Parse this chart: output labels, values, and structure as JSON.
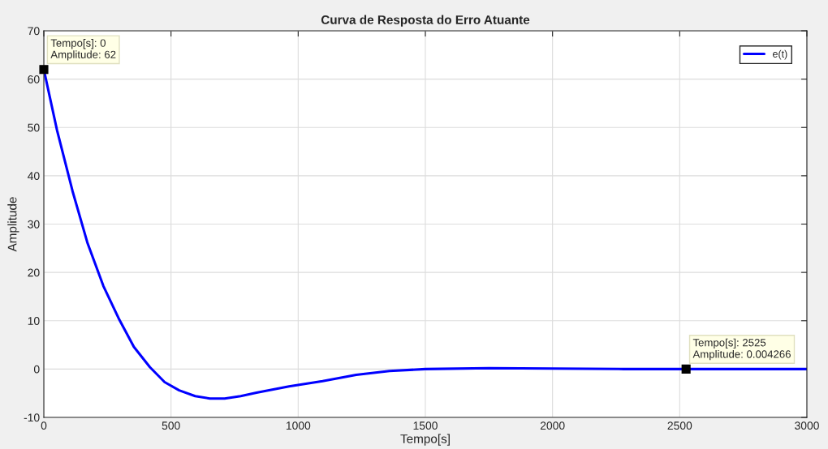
{
  "chart_data": {
    "type": "line",
    "title": "Curva de Resposta do Erro Atuante",
    "xlabel": "Tempo[s]",
    "ylabel": "Amplitude",
    "xlim": [
      0,
      3000
    ],
    "ylim": [
      -10,
      70
    ],
    "xticks": [
      0,
      500,
      1000,
      1500,
      2000,
      2500,
      3000
    ],
    "yticks": [
      -10,
      0,
      10,
      20,
      30,
      40,
      50,
      60,
      70
    ],
    "grid": true,
    "legend": "top right",
    "marker": "none",
    "line_style": "solid",
    "series": [
      {
        "name": "e(t)",
        "color": "#0000ff",
        "x": [
          0,
          52,
          113,
          171,
          234,
          297,
          354,
          417,
          475,
          532,
          595,
          653,
          711,
          774,
          836,
          964,
          1096,
          1228,
          1359,
          1500,
          1750,
          2000,
          2280,
          2525,
          3000
        ],
        "values": [
          62,
          49.4,
          36.8,
          26.2,
          17.2,
          10.2,
          4.6,
          0.4,
          -2.7,
          -4.4,
          -5.6,
          -6.1,
          -6.1,
          -5.6,
          -4.9,
          -3.6,
          -2.5,
          -1.2,
          -0.4,
          0,
          0.2,
          0.1,
          0,
          0.004266,
          0
        ]
      }
    ],
    "annotations": [
      {
        "text": "Tempo[s]: 0\nAmplitude: 62",
        "x": 0,
        "y": 62
      },
      {
        "text": "Tempo[s]: 2525\nAmplitude: 0.004266",
        "x": 2525,
        "y": 0.004266
      }
    ]
  }
}
